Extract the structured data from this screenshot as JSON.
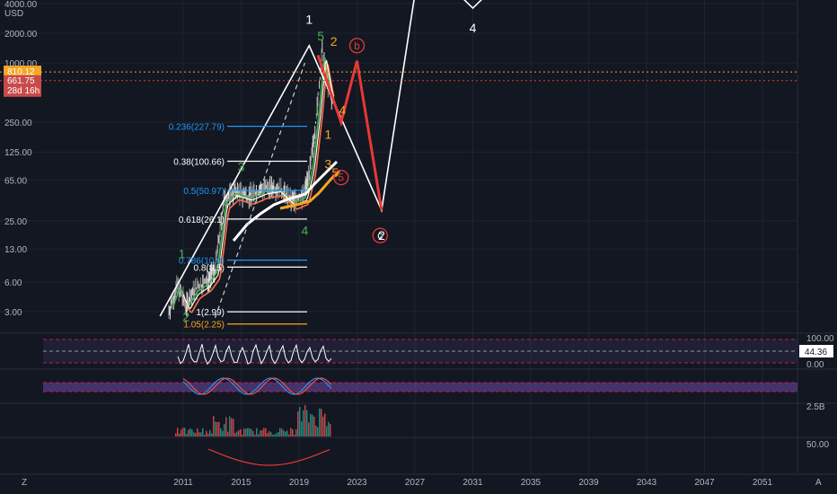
{
  "header": {
    "currency": "USD"
  },
  "price_tags": {
    "current": "810.12",
    "secondary": "661.75",
    "countdown": "28d 16h"
  },
  "volume_label": "2.5B",
  "rsi_value": "44.36",
  "corner_labels": {
    "left": "Z",
    "right": "A"
  },
  "colors": {
    "background": "#131722",
    "white_line": "#ffffff",
    "green_wave": "#4caf50",
    "orange_wave": "#f5a623",
    "red_wave": "#e53935",
    "fib_blue": "#2196f3",
    "rsi_band": "#7e57c2",
    "current_price": "#f5a623",
    "secondary_price": "#c84a4a"
  },
  "chart_data": [
    {
      "type": "line",
      "panel": "main",
      "yscale": "log",
      "ylim": [
        2,
        4000
      ],
      "xlim": [
        2009.5,
        2054.5
      ],
      "ylabel": "USD",
      "y_ticks": [
        "4000.00",
        "2000.00",
        "1000.00",
        "250.00",
        "125.00",
        "65.00",
        "25.00",
        "13.00",
        "6.00",
        "3.00"
      ],
      "x_ticks": [
        "2011",
        "2015",
        "2019",
        "2023",
        "2027",
        "2031",
        "2035",
        "2039",
        "2043",
        "2047",
        "2051"
      ],
      "series": [
        {
          "name": "",
          "color": "white",
          "x": [
            2009.4,
            2019.7,
            2024.7,
            2027.0
          ],
          "y": [
            2.7,
            1500,
            32,
            5000
          ]
        },
        {
          "name": "",
          "color": "white",
          "x": [
            2030.0,
            2031.0,
            2032.0
          ],
          "y": [
            5000,
            3600,
            5000
          ]
        },
        {
          "name": "",
          "color": "red",
          "x": [
            2020.3,
            2021.9,
            2023.0,
            2024.7
          ],
          "y": [
            1200,
            250,
            1050,
            32
          ]
        },
        {
          "name": "",
          "color": "white-dashed",
          "x": [
            2013.2,
            2019.4
          ],
          "y": [
            2.6,
            1000
          ]
        }
      ],
      "fib_levels": [
        {
          "label": "0.236(227.79)",
          "value": 227.79,
          "color": "blue"
        },
        {
          "label": "0.38(100.66)",
          "value": 100.66,
          "color": "white"
        },
        {
          "label": "0.5(50.97)",
          "value": 50.97,
          "color": "blue"
        },
        {
          "label": "0.618(26.1)",
          "value": 26.1,
          "color": "white"
        },
        {
          "label": "0.786(10.0)",
          "value": 10.0,
          "color": "blue"
        },
        {
          "label": "0.8(8.5)",
          "value": 8.5,
          "color": "white"
        },
        {
          "label": "1(2.99)",
          "value": 2.99,
          "color": "white"
        },
        {
          "label": "1.05(2.25)",
          "value": 2.25,
          "color": "orange"
        }
      ],
      "horizontal_lines": [
        {
          "name": "current",
          "value": 810.12,
          "color": "orange"
        },
        {
          "name": "secondary",
          "value": 661.75,
          "color": "red"
        }
      ],
      "wave_labels": [
        {
          "text": "1",
          "x": 2019.7,
          "y": 2500,
          "color": "white"
        },
        {
          "text": "4",
          "x": 2031.0,
          "y": 2050,
          "color": "white"
        },
        {
          "text": "2",
          "x": 2024.7,
          "y": 16,
          "color": "white"
        },
        {
          "text": "5",
          "x": 2020.5,
          "y": 1700,
          "color": "green"
        },
        {
          "text": "3",
          "x": 2015.0,
          "y": 80,
          "color": "green"
        },
        {
          "text": "1",
          "x": 2010.9,
          "y": 10.5,
          "color": "green"
        },
        {
          "text": "2",
          "x": 2011.2,
          "y": 2.4,
          "color": "green"
        },
        {
          "text": "4",
          "x": 2019.4,
          "y": 18,
          "color": "green"
        },
        {
          "text": "2",
          "x": 2021.4,
          "y": 1500,
          "color": "orange"
        },
        {
          "text": "4",
          "x": 2022.0,
          "y": 300,
          "color": "orange"
        },
        {
          "text": "1",
          "x": 2021.0,
          "y": 170,
          "color": "orange"
        },
        {
          "text": "3",
          "x": 2021.0,
          "y": 85,
          "color": "orange"
        },
        {
          "text": "5",
          "x": 2021.5,
          "y": 70,
          "color": "orange"
        },
        {
          "text": "b",
          "x": 2023.0,
          "y": 1350,
          "color": "red",
          "circled": true
        },
        {
          "text": "5",
          "x": 2021.9,
          "y": 62,
          "color": "red",
          "circled": true
        },
        {
          "text": "c",
          "x": 2024.6,
          "y": 16,
          "color": "red",
          "circled": true
        }
      ]
    },
    {
      "type": "line",
      "panel": "oscillator-1",
      "ylim": [
        0,
        100
      ],
      "y_ticks": [
        "100.00",
        "0.00"
      ],
      "current_value": 44.36
    },
    {
      "type": "line",
      "panel": "oscillator-2",
      "ylim": [
        0,
        100
      ]
    },
    {
      "type": "bar",
      "panel": "volume",
      "y_ticks": [
        "2.5B"
      ]
    },
    {
      "type": "line",
      "panel": "indicator",
      "y_ticks": [
        "50.00"
      ]
    }
  ]
}
